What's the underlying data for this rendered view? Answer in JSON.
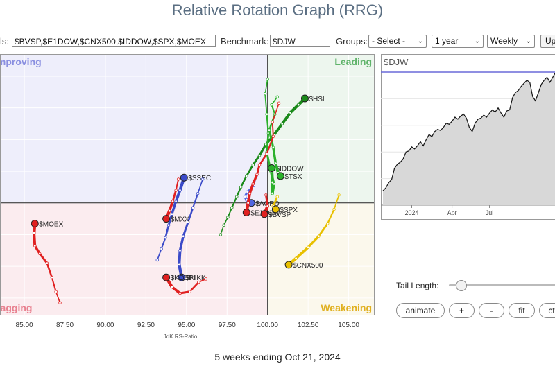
{
  "title": "Relative Rotation Graph (RRG)",
  "controls": {
    "symbols_label": "ls:",
    "symbols_value": "$BVSP,$E1DOW,$CNX500,$IDDOW,$SPX,$MOEX",
    "benchmark_label": "Benchmark:",
    "benchmark_value": "$DJW",
    "groups_label": "Groups:",
    "groups_value": "- Select -",
    "period_value": "1 year",
    "interval_value": "Weekly",
    "update_label": "Up"
  },
  "chart_data": [
    {
      "type": "scatter",
      "title": "",
      "xlabel": "JdK RS-Ratio",
      "ylabel": "",
      "xlim": [
        83.5,
        106.6
      ],
      "x_ticks": [
        "85.00",
        "87.50",
        "90.00",
        "92.50",
        "95.00",
        "97.50",
        "100.00",
        "102.50",
        "105.00"
      ],
      "quadrants": {
        "improving": {
          "label": "Improving",
          "color": "#eeeefb"
        },
        "leading": {
          "label": "Leading",
          "color": "#edf6ee"
        },
        "lagging": {
          "label": "Lagging",
          "color": "#fbecef"
        },
        "weakening": {
          "label": "Weakening",
          "color": "#fbf8ec"
        }
      },
      "quadrant_label_colors": {
        "improving": "#8a8fe0",
        "leading": "#5fb36a",
        "lagging": "#e8808f",
        "weakening": "#e0b020"
      },
      "center": [
        100,
        100
      ],
      "series": [
        {
          "name": "$HSI",
          "color": "#1a8a1a",
          "points": [
            [
              97.1,
              98.0
            ],
            [
              97.3,
              98.6
            ],
            [
              97.55,
              99.1
            ],
            [
              97.8,
              99.7
            ],
            [
              98.1,
              100.4
            ],
            [
              98.35,
              101.0
            ],
            [
              98.7,
              101.7
            ],
            [
              99.1,
              102.4
            ],
            [
              99.5,
              103.0
            ],
            [
              99.9,
              103.7
            ],
            [
              100.4,
              104.3
            ],
            [
              100.9,
              105.0
            ],
            [
              101.4,
              105.7
            ],
            [
              101.9,
              106.2
            ],
            [
              102.3,
              106.6
            ]
          ]
        },
        {
          "name": "$IDDOW",
          "color": "#2bb02b",
          "points": [
            [
              100.0,
              107.8
            ],
            [
              99.85,
              106.9
            ],
            [
              99.95,
              105.6
            ],
            [
              100.05,
              104.4
            ],
            [
              99.95,
              103.2
            ],
            [
              100.2,
              102.0
            ],
            [
              100.4,
              101.2
            ],
            [
              100.3,
              100.6
            ],
            [
              100.3,
              101.3
            ],
            [
              100.25,
              102.2
            ]
          ]
        },
        {
          "name": "$TSX",
          "color": "#2bb02b",
          "points": [
            [
              100.6,
              106.7
            ],
            [
              100.25,
              106.2
            ],
            [
              100.45,
              105.6
            ],
            [
              100.1,
              104.6
            ],
            [
              100.35,
              103.5
            ],
            [
              100.5,
              102.5
            ],
            [
              100.65,
              101.9
            ],
            [
              100.8,
              101.7
            ]
          ]
        },
        {
          "name": "$AORD",
          "color": "#5266e0",
          "points": [
            [
              99.3,
              101.7
            ],
            [
              99.15,
              101.1
            ],
            [
              98.75,
              100.7
            ],
            [
              98.6,
              100.4
            ],
            [
              98.7,
              100.2
            ],
            [
              99.0,
              100.0
            ]
          ]
        },
        {
          "name": "$E1DOW",
          "color": "#e02020",
          "points": [
            [
              100.7,
              106.3
            ],
            [
              100.3,
              105.1
            ],
            [
              100.35,
              104.2
            ],
            [
              99.95,
              103.1
            ],
            [
              99.5,
              102.4
            ],
            [
              99.35,
              101.8
            ],
            [
              99.1,
              101.2
            ],
            [
              98.9,
              100.6
            ],
            [
              98.8,
              100.0
            ],
            [
              98.7,
              99.4
            ]
          ]
        },
        {
          "name": "$SPX",
          "color": "#e8c000",
          "points": [
            [
              100.6,
              100.4
            ],
            [
              100.35,
              99.8
            ],
            [
              100.5,
              99.6
            ]
          ]
        },
        {
          "name": "$BVSP",
          "color": "#e02020",
          "points": [
            [
              99.9,
              100.5
            ],
            [
              100.0,
              99.8
            ],
            [
              99.8,
              99.3
            ]
          ]
        },
        {
          "name": "$SSEC",
          "color": "#3a4ac8",
          "points": [
            [
              93.2,
              96.4
            ],
            [
              93.45,
              97.1
            ],
            [
              93.7,
              97.8
            ],
            [
              93.9,
              98.6
            ],
            [
              94.1,
              99.3
            ],
            [
              94.35,
              100.1
            ],
            [
              94.6,
              100.8
            ],
            [
              94.85,
              101.6
            ]
          ]
        },
        {
          "name": "$NIKK",
          "color": "#3a4ac8",
          "points": [
            [
              96.0,
              101.5
            ],
            [
              95.7,
              100.6
            ],
            [
              95.4,
              99.7
            ],
            [
              95.1,
              98.8
            ],
            [
              94.8,
              97.9
            ],
            [
              94.6,
              97.0
            ],
            [
              94.55,
              96.1
            ],
            [
              94.7,
              95.3
            ]
          ]
        },
        {
          "name": "$MXX",
          "color": "#e02020",
          "points": [
            [
              94.5,
              101.5
            ],
            [
              94.35,
              100.8
            ],
            [
              94.15,
              100.1
            ],
            [
              93.95,
              99.5
            ],
            [
              93.75,
              99.0
            ]
          ]
        },
        {
          "name": "$KOSPI",
          "color": "#e02020",
          "points": [
            [
              96.2,
              95.2
            ],
            [
              95.75,
              95.0
            ],
            [
              95.2,
              94.4
            ],
            [
              94.6,
              94.3
            ],
            [
              94.1,
              94.7
            ],
            [
              93.75,
              95.3
            ]
          ]
        },
        {
          "name": "$MOEX",
          "color": "#e02020",
          "points": [
            [
              87.2,
              93.7
            ],
            [
              86.95,
              94.4
            ],
            [
              86.7,
              95.3
            ],
            [
              86.4,
              96.2
            ],
            [
              85.95,
              96.8
            ],
            [
              85.65,
              97.3
            ],
            [
              85.6,
              98.1
            ],
            [
              85.65,
              98.7
            ]
          ]
        },
        {
          "name": "$CNX500",
          "color": "#e8c000",
          "points": [
            [
              104.4,
              100.5
            ],
            [
              104.1,
              99.6
            ],
            [
              103.7,
              98.7
            ],
            [
              103.15,
              97.9
            ],
            [
              102.5,
              97.2
            ],
            [
              101.75,
              96.5
            ],
            [
              101.3,
              96.1
            ]
          ]
        }
      ]
    },
    {
      "type": "area",
      "title": "$DJW",
      "x_ticks": [
        "2024",
        "Apr",
        "Jul"
      ],
      "x": [
        0,
        1,
        2,
        3,
        4,
        5,
        6,
        7,
        8,
        9,
        10,
        11,
        12,
        13,
        14,
        15,
        16,
        17,
        18,
        19,
        20,
        21,
        22,
        23,
        24,
        25,
        26,
        27,
        28,
        29,
        30,
        31,
        32,
        33,
        34,
        35,
        36,
        37,
        38,
        39,
        40,
        41,
        42,
        43,
        44,
        45,
        46,
        47,
        48,
        49,
        50,
        51,
        52,
        53,
        54,
        55,
        56,
        57,
        58,
        59,
        60
      ],
      "values": [
        0.14,
        0.17,
        0.22,
        0.25,
        0.36,
        0.4,
        0.42,
        0.45,
        0.52,
        0.53,
        0.57,
        0.55,
        0.58,
        0.62,
        0.58,
        0.64,
        0.69,
        0.67,
        0.72,
        0.74,
        0.73,
        0.76,
        0.8,
        0.79,
        0.82,
        0.86,
        0.84,
        0.87,
        0.89,
        0.85,
        0.76,
        0.72,
        0.8,
        0.84,
        0.85,
        0.88,
        0.86,
        0.9,
        0.93,
        0.91,
        0.95,
        0.9,
        0.86,
        0.92,
        0.93,
        1.05,
        1.1,
        1.12,
        1.16,
        1.19,
        1.22,
        1.2,
        1.06,
        1.02,
        1.1,
        1.18,
        1.22,
        1.25,
        1.2,
        1.25,
        1.3
      ],
      "baseline_value": 1.3,
      "fill_color": "#d8d8d8",
      "line_color": "#111111",
      "baseline_color": "#6a6ad8"
    }
  ],
  "panel": {
    "tail_length_label": "Tail Length:",
    "tail_length_value": 0.12,
    "buttons": [
      "animate",
      "+",
      "-",
      "fit",
      "ct"
    ]
  },
  "footer": "5 weeks ending Oct 21, 2024"
}
